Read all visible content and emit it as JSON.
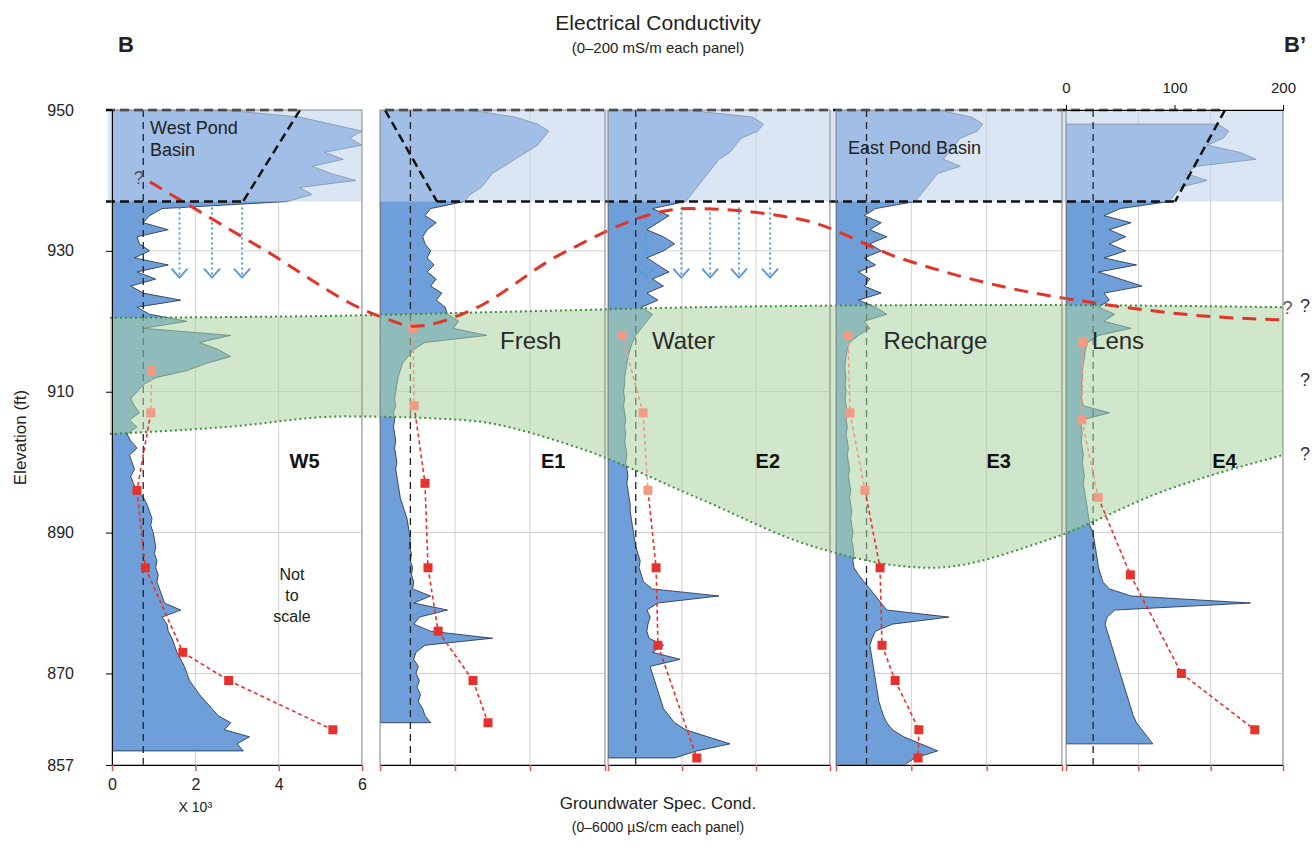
{
  "chart_data": {
    "type": "well_log_section",
    "title": "Electrical Conductivity",
    "subtitle": "(0–200 mS/m each panel)",
    "section_labels": [
      "B",
      "B’"
    ],
    "ylabel": "Elevation (ft)",
    "ylim": [
      857,
      950
    ],
    "yticks": [
      950,
      930,
      910,
      890,
      870,
      857
    ],
    "xlim": [
      0,
      200
    ],
    "xticks": [
      0,
      100,
      200
    ],
    "x2label": "Groundwater Spec. Cond.",
    "x2subtitle": "(0–6000 µS/cm   each panel)",
    "x2lim": [
      0,
      6000
    ],
    "x2ticks": [
      0,
      {
        "value": 2000,
        "label": "2"
      },
      {
        "value": 4000,
        "label": "4"
      },
      {
        "value": 6000,
        "label": "6"
      }
    ],
    "x2multiplier": "X 10³",
    "grid": true,
    "note": "Not to scale",
    "section_xlim": [
      0,
      100
    ],
    "elevation": [
      950,
      949,
      948,
      947,
      946,
      945,
      944,
      943,
      942,
      941,
      940,
      939,
      938,
      937,
      936,
      935,
      934,
      933,
      932,
      931,
      930,
      929,
      928,
      927,
      926,
      925,
      924,
      923,
      922,
      921,
      920,
      919,
      918,
      917,
      916,
      915,
      914,
      913,
      912,
      911,
      910,
      909,
      908,
      907,
      906,
      905,
      904,
      903,
      902,
      901,
      900,
      899,
      898,
      897,
      896,
      895,
      894,
      893,
      892,
      891,
      890,
      889,
      888,
      887,
      886,
      885,
      884,
      883,
      882,
      881,
      880,
      879,
      878,
      877,
      876,
      875,
      874,
      873,
      872,
      871,
      870,
      869,
      868,
      867,
      866,
      865,
      864,
      863,
      862,
      861,
      860,
      859,
      858,
      857
    ],
    "panels": [
      {
        "name": "W5",
        "ec": {
          "color": "#6f9fd9",
          "values": [
            90,
            150,
            175,
            200,
            190,
            200,
            170,
            185,
            160,
            175,
            195,
            150,
            160,
            140,
            40,
            30,
            25,
            45,
            20,
            22,
            30,
            18,
            45,
            20,
            35,
            15,
            25,
            55,
            20,
            30,
            60,
            25,
            95,
            70,
            85,
            95,
            75,
            60,
            35,
            25,
            20,
            15,
            18,
            22,
            14,
            20,
            12,
            15,
            20,
            14,
            16,
            18,
            15,
            17,
            20,
            25,
            28,
            30,
            32,
            31,
            33,
            34,
            35,
            34,
            36,
            35,
            37,
            36,
            38,
            40,
            42,
            55,
            40,
            44,
            45,
            48,
            50,
            52,
            55,
            58,
            60,
            62,
            66,
            70,
            75,
            80,
            85,
            95,
            90,
            110,
            100,
            105,
            null,
            null
          ]
        },
        "reference_ec": 25,
        "spec_cond": {
          "elevation": [
            913,
            907,
            896,
            885,
            873,
            869,
            862
          ],
          "values": [
            950,
            930,
            600,
            800,
            1700,
            2800,
            5300
          ],
          "colors": [
            "#f29b84",
            "#f29b84",
            "#e5322d",
            "#e5322d",
            "#e5322d",
            "#e5322d",
            "#e5322d"
          ],
          "marker": "square",
          "line_style": "dashed"
        }
      },
      {
        "name": "E1",
        "ec": {
          "color": "#6f9fd9",
          "values": [
            80,
            120,
            140,
            150,
            145,
            140,
            130,
            120,
            110,
            100,
            95,
            90,
            80,
            75,
            45,
            40,
            50,
            42,
            38,
            40,
            45,
            42,
            48,
            42,
            50,
            45,
            55,
            50,
            58,
            60,
            70,
            65,
            95,
            40,
            30,
            25,
            20,
            18,
            16,
            15,
            14,
            13,
            14,
            12,
            13,
            12,
            13,
            14,
            13,
            14,
            15,
            14,
            15,
            16,
            17,
            18,
            20,
            22,
            24,
            25,
            26,
            27,
            26,
            28,
            27,
            29,
            28,
            30,
            29,
            45,
            30,
            60,
            35,
            30,
            45,
            100,
            40,
            32,
            30,
            34,
            32,
            35,
            33,
            36,
            34,
            38,
            40,
            45,
            null,
            null,
            null,
            null,
            null,
            null
          ]
        },
        "reference_ec": 27,
        "spec_cond": {
          "elevation": [
            919,
            908,
            897,
            885,
            876,
            869,
            863
          ],
          "values": [
            880,
            910,
            1200,
            1280,
            1550,
            2480,
            2880
          ],
          "colors": [
            "#f29b84",
            "#f29b84",
            "#e5322d",
            "#e5322d",
            "#e5322d",
            "#e5322d",
            "#e5322d"
          ],
          "marker": "square",
          "line_style": "dashed"
        }
      },
      {
        "name": "E2",
        "ec": {
          "color": "#6f9fd9",
          "values": [
            70,
            130,
            140,
            135,
            120,
            115,
            110,
            100,
            95,
            90,
            85,
            80,
            75,
            70,
            40,
            55,
            45,
            35,
            50,
            60,
            50,
            35,
            45,
            55,
            40,
            50,
            35,
            45,
            30,
            40,
            35,
            30,
            25,
            22,
            20,
            18,
            17,
            16,
            15,
            15,
            14,
            15,
            14,
            15,
            16,
            15,
            16,
            15,
            16,
            17,
            16,
            17,
            18,
            17,
            18,
            19,
            20,
            20,
            21,
            22,
            23,
            24,
            25,
            27,
            29,
            28,
            30,
            32,
            40,
            100,
            45,
            35,
            38,
            36,
            35,
            37,
            50,
            40,
            65,
            38,
            40,
            42,
            44,
            46,
            48,
            50,
            55,
            60,
            70,
            90,
            110,
            80,
            60,
            null
          ]
        },
        "reference_ec": 25,
        "spec_cond": {
          "elevation": [
            918,
            907,
            896,
            885,
            874,
            858
          ],
          "values": [
            380,
            950,
            1080,
            1300,
            1350,
            2400
          ],
          "colors": [
            "#f29b84",
            "#f29b84",
            "#f29b84",
            "#e5322d",
            "#e5322d",
            "#e5322d"
          ],
          "marker": "square",
          "line_style": "dashed"
        }
      },
      {
        "name": "E3",
        "ec": {
          "color": "#6f9fd9",
          "values": [
            90,
            120,
            130,
            125,
            110,
            105,
            100,
            95,
            110,
            90,
            85,
            80,
            75,
            70,
            35,
            25,
            40,
            30,
            45,
            30,
            40,
            25,
            35,
            20,
            30,
            25,
            40,
            20,
            35,
            45,
            25,
            30,
            20,
            12,
            10,
            9,
            8,
            8,
            9,
            8,
            9,
            8,
            9,
            10,
            9,
            10,
            9,
            10,
            11,
            10,
            11,
            12,
            11,
            12,
            13,
            12,
            13,
            14,
            13,
            14,
            15,
            14,
            15,
            16,
            15,
            16,
            20,
            25,
            30,
            35,
            40,
            45,
            100,
            50,
            35,
            32,
            30,
            31,
            32,
            33,
            34,
            35,
            36,
            37,
            38,
            40,
            42,
            45,
            50,
            60,
            75,
            90,
            70,
            60
          ]
        },
        "reference_ec": 27,
        "spec_cond": {
          "elevation": [
            918,
            907,
            896,
            885,
            874,
            869,
            862,
            858
          ],
          "values": [
            320,
            370,
            770,
            1170,
            1220,
            1570,
            2200,
            2180
          ],
          "colors": [
            "#f29b84",
            "#f29b84",
            "#f29b84",
            "#e5322d",
            "#e5322d",
            "#e5322d",
            "#e5322d",
            "#e5322d"
          ],
          "marker": "square",
          "line_style": "dashed"
        }
      },
      {
        "name": "E4",
        "ec": {
          "color": "#6f9fd9",
          "values": [
            null,
            null,
            140,
            150,
            145,
            130,
            160,
            175,
            120,
            110,
            130,
            105,
            100,
            95,
            50,
            35,
            60,
            40,
            55,
            40,
            55,
            35,
            65,
            30,
            50,
            70,
            35,
            40,
            30,
            45,
            35,
            60,
            30,
            20,
            18,
            17,
            16,
            15,
            15,
            14,
            15,
            14,
            16,
            40,
            15,
            14,
            15,
            14,
            15,
            16,
            15,
            16,
            17,
            16,
            17,
            18,
            19,
            20,
            21,
            22,
            25,
            26,
            27,
            28,
            29,
            30,
            32,
            34,
            40,
            60,
            170,
            45,
            38,
            36,
            38,
            40,
            42,
            44,
            46,
            48,
            50,
            52,
            54,
            56,
            58,
            60,
            62,
            65,
            70,
            75,
            80,
            null,
            null,
            null
          ]
        },
        "reference_ec": 25,
        "spec_cond": {
          "elevation": [
            917,
            906,
            895,
            884,
            870,
            862
          ],
          "values": [
            470,
            440,
            890,
            1780,
            3190,
            5220
          ],
          "colors": [
            "#f29b84",
            "#f29b84",
            "#f29b84",
            "#e5322d",
            "#e5322d",
            "#e5322d"
          ],
          "marker": "square",
          "line_style": "dashed"
        }
      }
    ],
    "basins": [
      {
        "label": "West Pond Basin",
        "top": 950,
        "bottom": 937,
        "color": "#c3d6ee"
      },
      {
        "label": "East Pond Basin",
        "top": 950,
        "bottom": 937,
        "color": "#c3d6ee"
      }
    ],
    "lens": {
      "label": [
        "Fresh",
        "Water",
        "Recharge",
        "Lens"
      ],
      "x": [
        0,
        10,
        20,
        30,
        40,
        50,
        60,
        70,
        80,
        90,
        100
      ],
      "top": [
        920.5,
        920.6,
        920.8,
        921.2,
        921.6,
        922,
        922.2,
        922.3,
        922.3,
        922.2,
        922
      ],
      "bottom": [
        904,
        905,
        906.5,
        906,
        902,
        895,
        888,
        885,
        889,
        896,
        901
      ],
      "color": "#a9d4a0",
      "edge_labels": [
        "?",
        "?",
        "?"
      ]
    },
    "water_table": {
      "x": [
        3.4,
        12.8,
        23,
        26,
        30.7,
        38.4,
        49.4,
        58.8,
        67.3,
        75.9,
        84.4,
        92.9,
        99.7
      ],
      "values": [
        939.8,
        930.5,
        920.7,
        919.3,
        921.5,
        929.5,
        936,
        934.5,
        929,
        925,
        922.5,
        920.8,
        920.2
      ],
      "color": "#e0352b",
      "line_style": "dashed",
      "end_labels": [
        "?",
        "?"
      ]
    }
  }
}
